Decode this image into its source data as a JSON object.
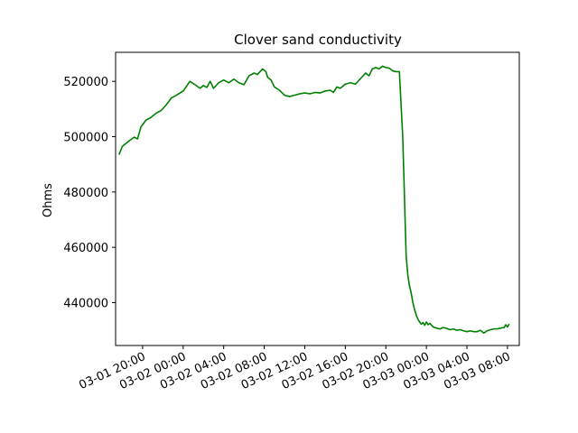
{
  "chart_data": {
    "type": "line",
    "title": "Clover sand conductivity",
    "xlabel": "",
    "ylabel": "Ohms",
    "ylim": [
      424500,
      530500
    ],
    "xlim": [
      "2016-03-01 17:20",
      "2016-03-03 09:10"
    ],
    "grid": false,
    "legend": "none",
    "x_ticks": [
      {
        "t": "2016-03-01 20:00",
        "label": "03-01 20:00"
      },
      {
        "t": "2016-03-02 00:00",
        "label": "03-02 00:00"
      },
      {
        "t": "2016-03-02 04:00",
        "label": "03-02 04:00"
      },
      {
        "t": "2016-03-02 08:00",
        "label": "03-02 08:00"
      },
      {
        "t": "2016-03-02 12:00",
        "label": "03-02 12:00"
      },
      {
        "t": "2016-03-02 16:00",
        "label": "03-02 16:00"
      },
      {
        "t": "2016-03-02 20:00",
        "label": "03-02 20:00"
      },
      {
        "t": "2016-03-03 00:00",
        "label": "03-03 00:00"
      },
      {
        "t": "2016-03-03 04:00",
        "label": "03-03 04:00"
      },
      {
        "t": "2016-03-03 08:00",
        "label": "03-03 08:00"
      }
    ],
    "y_ticks": [
      {
        "v": 440000,
        "label": "440000"
      },
      {
        "v": 460000,
        "label": "460000"
      },
      {
        "v": 480000,
        "label": "480000"
      },
      {
        "v": 500000,
        "label": "500000"
      },
      {
        "v": 520000,
        "label": "520000"
      }
    ],
    "series": [
      {
        "color": "#008000",
        "points": [
          [
            "2016-03-01 17:40",
            493500
          ],
          [
            "2016-03-01 18:00",
            496500
          ],
          [
            "2016-03-01 18:40",
            498500
          ],
          [
            "2016-03-01 19:10",
            499800
          ],
          [
            "2016-03-01 19:30",
            499200
          ],
          [
            "2016-03-01 19:50",
            503500
          ],
          [
            "2016-03-01 20:20",
            506000
          ],
          [
            "2016-03-01 20:50",
            507000
          ],
          [
            "2016-03-01 21:20",
            508500
          ],
          [
            "2016-03-01 21:50",
            509500
          ],
          [
            "2016-03-01 22:20",
            511500
          ],
          [
            "2016-03-01 22:50",
            514000
          ],
          [
            "2016-03-01 23:20",
            515000
          ],
          [
            "2016-03-02 00:00",
            516500
          ],
          [
            "2016-03-02 00:40",
            520000
          ],
          [
            "2016-03-02 01:10",
            518800
          ],
          [
            "2016-03-02 01:40",
            517500
          ],
          [
            "2016-03-02 02:00",
            518500
          ],
          [
            "2016-03-02 02:20",
            517800
          ],
          [
            "2016-03-02 02:40",
            520000
          ],
          [
            "2016-03-02 03:00",
            517500
          ],
          [
            "2016-03-02 03:30",
            519500
          ],
          [
            "2016-03-02 04:00",
            520500
          ],
          [
            "2016-03-02 04:30",
            519500
          ],
          [
            "2016-03-02 05:00",
            520800
          ],
          [
            "2016-03-02 05:30",
            519500
          ],
          [
            "2016-03-02 06:00",
            518800
          ],
          [
            "2016-03-02 06:30",
            522000
          ],
          [
            "2016-03-02 07:00",
            523000
          ],
          [
            "2016-03-02 07:20",
            522500
          ],
          [
            "2016-03-02 07:50",
            524500
          ],
          [
            "2016-03-02 08:10",
            523500
          ],
          [
            "2016-03-02 08:20",
            521500
          ],
          [
            "2016-03-02 08:40",
            520500
          ],
          [
            "2016-03-02 09:00",
            518000
          ],
          [
            "2016-03-02 09:30",
            516800
          ],
          [
            "2016-03-02 10:00",
            515000
          ],
          [
            "2016-03-02 10:30",
            514500
          ],
          [
            "2016-03-02 11:00",
            515000
          ],
          [
            "2016-03-02 11:30",
            515500
          ],
          [
            "2016-03-02 12:00",
            515800
          ],
          [
            "2016-03-02 12:30",
            515500
          ],
          [
            "2016-03-02 13:00",
            516000
          ],
          [
            "2016-03-02 13:30",
            515800
          ],
          [
            "2016-03-02 14:00",
            516500
          ],
          [
            "2016-03-02 14:30",
            516800
          ],
          [
            "2016-03-02 14:50",
            516000
          ],
          [
            "2016-03-02 15:10",
            518000
          ],
          [
            "2016-03-02 15:30",
            517500
          ],
          [
            "2016-03-02 16:00",
            519000
          ],
          [
            "2016-03-02 16:30",
            519500
          ],
          [
            "2016-03-02 17:00",
            519000
          ],
          [
            "2016-03-02 17:30",
            521000
          ],
          [
            "2016-03-02 18:00",
            523000
          ],
          [
            "2016-03-02 18:20",
            522000
          ],
          [
            "2016-03-02 18:40",
            524500
          ],
          [
            "2016-03-02 19:00",
            525000
          ],
          [
            "2016-03-02 19:20",
            524500
          ],
          [
            "2016-03-02 19:40",
            525500
          ],
          [
            "2016-03-02 20:00",
            525000
          ],
          [
            "2016-03-02 20:20",
            524800
          ],
          [
            "2016-03-02 20:40",
            523800
          ],
          [
            "2016-03-02 21:00",
            523500
          ],
          [
            "2016-03-02 21:20",
            523500
          ],
          [
            "2016-03-02 21:40",
            500000
          ],
          [
            "2016-03-02 22:00",
            457000
          ],
          [
            "2016-03-02 22:10",
            450000
          ],
          [
            "2016-03-02 22:20",
            446000
          ],
          [
            "2016-03-02 22:30",
            443500
          ],
          [
            "2016-03-02 22:40",
            440000
          ],
          [
            "2016-03-02 22:50",
            437500
          ],
          [
            "2016-03-02 23:00",
            435500
          ],
          [
            "2016-03-02 23:10",
            434000
          ],
          [
            "2016-03-02 23:20",
            433000
          ],
          [
            "2016-03-02 23:30",
            432200
          ],
          [
            "2016-03-02 23:40",
            432800
          ],
          [
            "2016-03-02 23:50",
            431800
          ],
          [
            "2016-03-03 00:00",
            433000
          ],
          [
            "2016-03-03 00:10",
            432000
          ],
          [
            "2016-03-03 00:20",
            432500
          ],
          [
            "2016-03-03 00:40",
            431200
          ],
          [
            "2016-03-03 01:00",
            430800
          ],
          [
            "2016-03-03 01:20",
            430500
          ],
          [
            "2016-03-03 01:40",
            431000
          ],
          [
            "2016-03-03 02:00",
            430700
          ],
          [
            "2016-03-03 02:20",
            430200
          ],
          [
            "2016-03-03 02:40",
            430500
          ],
          [
            "2016-03-03 03:00",
            430000
          ],
          [
            "2016-03-03 03:20",
            430200
          ],
          [
            "2016-03-03 03:40",
            429800
          ],
          [
            "2016-03-03 04:00",
            429500
          ],
          [
            "2016-03-03 04:20",
            429800
          ],
          [
            "2016-03-03 04:40",
            429500
          ],
          [
            "2016-03-03 05:00",
            429500
          ],
          [
            "2016-03-03 05:20",
            430000
          ],
          [
            "2016-03-03 05:40",
            429000
          ],
          [
            "2016-03-03 06:00",
            429800
          ],
          [
            "2016-03-03 06:20",
            430200
          ],
          [
            "2016-03-03 06:40",
            430500
          ],
          [
            "2016-03-03 07:00",
            430500
          ],
          [
            "2016-03-03 07:20",
            430800
          ],
          [
            "2016-03-03 07:40",
            431000
          ],
          [
            "2016-03-03 07:50",
            432000
          ],
          [
            "2016-03-03 08:00",
            431200
          ],
          [
            "2016-03-03 08:10",
            432300
          ]
        ]
      }
    ]
  }
}
